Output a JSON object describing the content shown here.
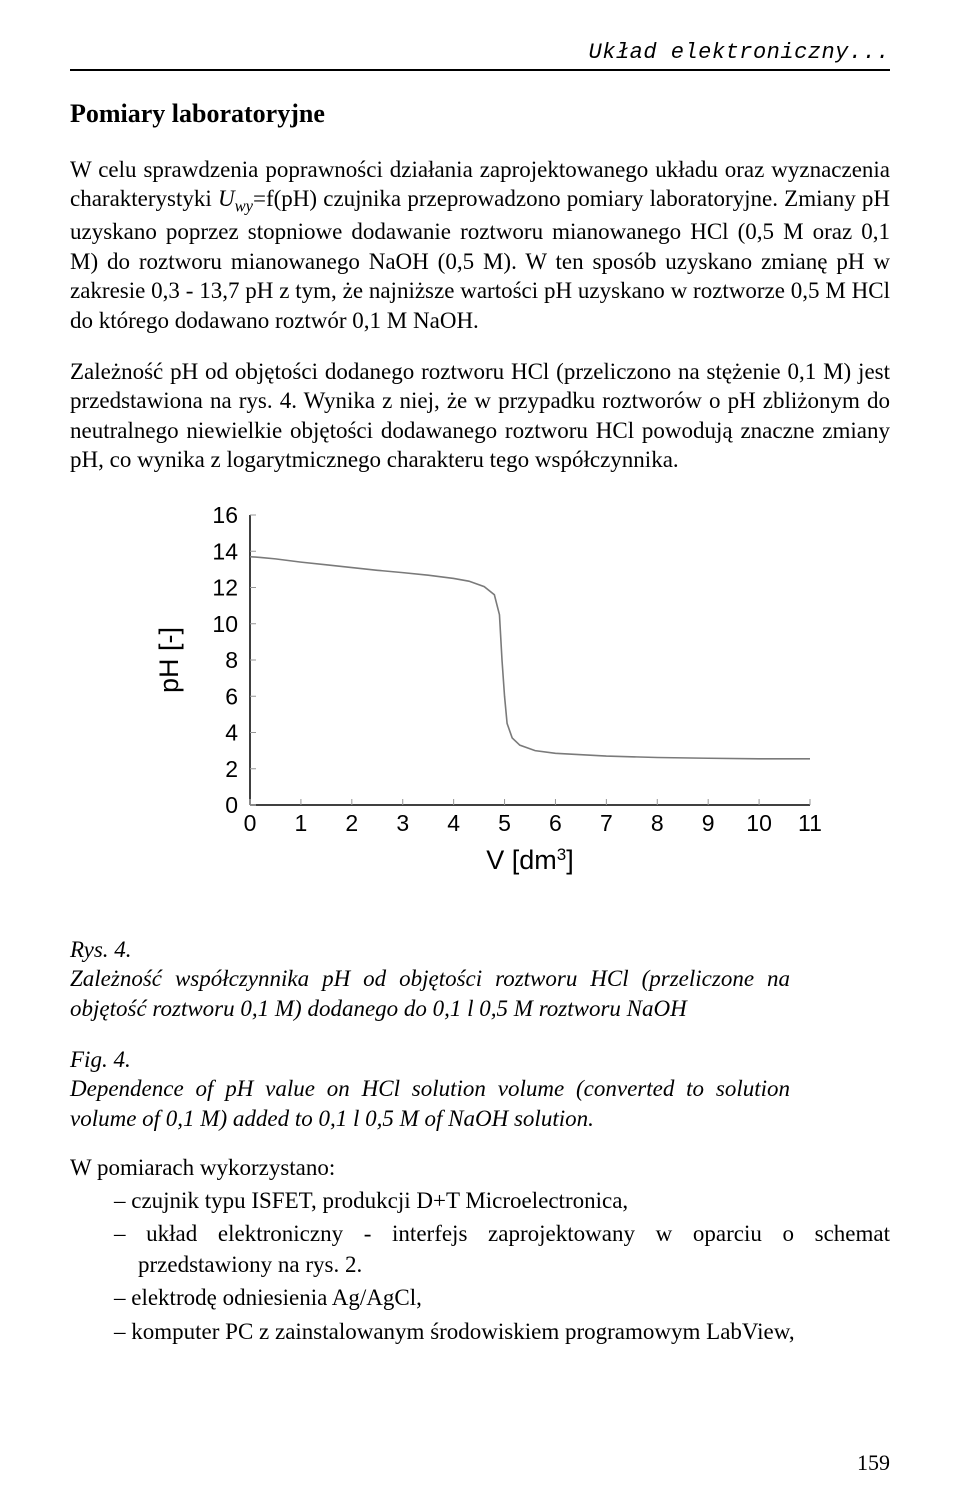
{
  "running_head": "Układ elektroniczny...",
  "section_title": "Pomiary laboratoryjne",
  "para1_a": "W celu sprawdzenia poprawności działania zaprojektowanego układu oraz wyznaczenia charakterystyki ",
  "para1_u": "U",
  "para1_sub": "wy",
  "para1_b": "=f(pH) czujnika przeprowadzono pomiary laboratoryjne. Zmiany pH uzyskano poprzez stopniowe dodawanie roztworu mianowanego HCl (0,5 M oraz 0,1 M) do roztworu mianowanego NaOH (0,5 M). W ten sposób uzyskano zmianę pH w zakresie 0,3 - 13,7 pH z tym, że najniższe wartości pH uzyskano w roztworze 0,5 M HCl do którego dodawano roztwór 0,1 M NaOH.",
  "para2": "Zależność pH od objętości dodanego roztworu HCl (przeliczono na stężenie 0,1 M) jest przedstawiona na rys. 4. Wynika z niej, że w przypadku roztworów o pH zbliżonym do neutralnego niewielkie objętości dodawanego roztworu HCl powodują znaczne zmiany pH, co wynika z logarytmicznego charakteru tego współczynnika.",
  "chart": {
    "type": "line",
    "y_label": "pH [-]",
    "x_label_a": "V [dm",
    "x_label_sup": "3",
    "x_label_b": "]",
    "xlim": [
      0,
      11
    ],
    "ylim": [
      0,
      16
    ],
    "xtick_step": 1,
    "ytick_step": 2,
    "xticks": [
      0,
      1,
      2,
      3,
      4,
      5,
      6,
      7,
      8,
      9,
      10,
      11
    ],
    "yticks": [
      0,
      2,
      4,
      6,
      8,
      10,
      12,
      14,
      16
    ],
    "background_color": "#ffffff",
    "axis_color": "#000000",
    "tick_color": "#969696",
    "line_color": "#7a7a7a",
    "line_width": 1.6,
    "font_size_ticks": 23,
    "font_size_labels": 27,
    "points": [
      [
        0.0,
        13.7
      ],
      [
        0.2,
        13.66
      ],
      [
        0.5,
        13.58
      ],
      [
        1.0,
        13.4
      ],
      [
        1.5,
        13.25
      ],
      [
        2.0,
        13.1
      ],
      [
        2.5,
        12.95
      ],
      [
        3.0,
        12.82
      ],
      [
        3.5,
        12.68
      ],
      [
        4.0,
        12.5
      ],
      [
        4.3,
        12.35
      ],
      [
        4.6,
        12.05
      ],
      [
        4.8,
        11.6
      ],
      [
        4.9,
        10.5
      ],
      [
        4.95,
        8.0
      ],
      [
        5.0,
        6.0
      ],
      [
        5.05,
        4.5
      ],
      [
        5.15,
        3.7
      ],
      [
        5.3,
        3.3
      ],
      [
        5.6,
        3.0
      ],
      [
        6.0,
        2.85
      ],
      [
        7.0,
        2.7
      ],
      [
        8.0,
        2.62
      ],
      [
        9.0,
        2.58
      ],
      [
        10.0,
        2.55
      ],
      [
        11.0,
        2.55
      ]
    ]
  },
  "caption_pl_lead": "Rys. 4.",
  "caption_pl_text": "Zależność współczynnika pH od objętości roztworu HCl (przeliczone na objętość roztworu 0,1 M) dodanego do 0,1 l 0,5 M roztworu NaOH",
  "caption_en_lead": "Fig. 4.",
  "caption_en_text": "Dependence of pH value on HCl solution volume (converted to solution volume of 0,1 M) added to 0,1 l 0,5 M of NaOH solution.",
  "list_intro": "W pomiarach wykorzystano:",
  "list_items": [
    "czujnik typu ISFET, produkcji D+T Microelectronica,",
    "układ elektroniczny - interfejs zaprojektowany w oparciu o schemat przedstawiony na rys. 2.",
    "elektrodę odniesienia Ag/AgCl,",
    "komputer PC z zainstalowanym środowiskiem programowym LabView,"
  ],
  "page_number": "159"
}
